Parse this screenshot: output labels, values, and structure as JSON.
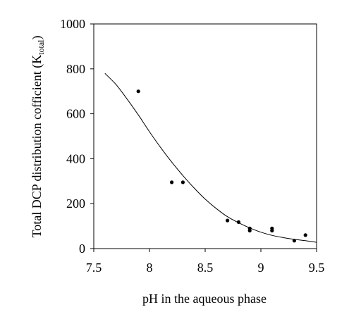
{
  "chart_data": {
    "type": "scatter",
    "xlabel": "pH in the aqueous phase",
    "ylabel_main": "Total DCP distribution cofficient (K",
    "ylabel_sub": "total",
    "ylabel_close": ")",
    "xlim": [
      7.5,
      9.5
    ],
    "ylim": [
      0,
      1000
    ],
    "x_ticks": [
      7.5,
      8,
      8.5,
      9,
      9.5
    ],
    "x_tick_labels": [
      "7.5",
      "8",
      "8.5",
      "9",
      "9.5"
    ],
    "y_ticks": [
      0,
      200,
      400,
      600,
      800,
      1000
    ],
    "y_tick_labels": [
      "0",
      "200",
      "400",
      "600",
      "800",
      "1000"
    ],
    "grid": false,
    "series": [
      {
        "kind": "points",
        "x": [
          7.9,
          8.2,
          8.3,
          8.7,
          8.8,
          8.9,
          8.9,
          9.1,
          9.1,
          9.3,
          9.4
        ],
        "y": [
          700,
          295,
          295,
          125,
          118,
          90,
          80,
          90,
          80,
          35,
          60
        ]
      },
      {
        "kind": "fit-curve",
        "x": [
          7.6,
          7.7,
          7.8,
          7.9,
          8.0,
          8.1,
          8.2,
          8.3,
          8.4,
          8.5,
          8.6,
          8.7,
          8.8,
          8.9,
          9.0,
          9.1,
          9.2,
          9.3,
          9.4,
          9.5
        ],
        "y": [
          780,
          730,
          665,
          595,
          520,
          450,
          385,
          325,
          270,
          220,
          178,
          142,
          115,
          92,
          73,
          59,
          49,
          41,
          35,
          28
        ]
      }
    ]
  }
}
